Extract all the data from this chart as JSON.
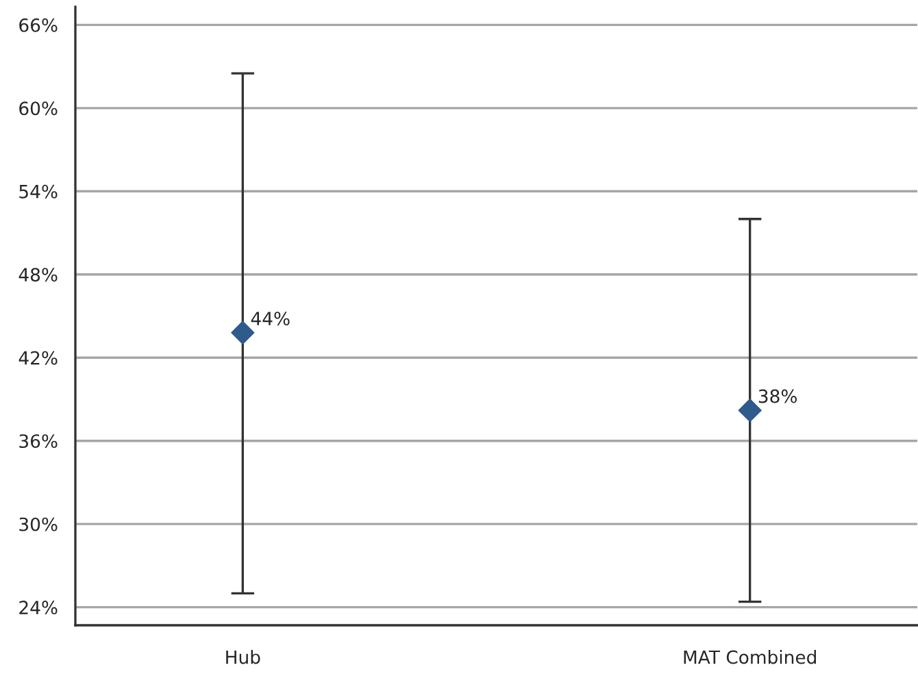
{
  "chart_data": {
    "type": "scatter",
    "categories": [
      "Hub",
      "MAT Combined"
    ],
    "series": [
      {
        "color": "#2f5a8c",
        "values": [
          43.8,
          38.2
        ],
        "errors": [
          [
            25.0,
            62.5
          ],
          [
            24.4,
            52.0
          ]
        ],
        "value_labels": [
          "44%",
          "38%"
        ]
      }
    ],
    "ylim": [
      22.7,
      67.3
    ],
    "yticks": [
      {
        "value": 24,
        "label": "24%"
      },
      {
        "value": 30,
        "label": "30%"
      },
      {
        "value": 36,
        "label": "36%"
      },
      {
        "value": 42,
        "label": "42%"
      },
      {
        "value": 48,
        "label": "48%"
      },
      {
        "value": 54,
        "label": "54%"
      },
      {
        "value": 60,
        "label": "60%"
      },
      {
        "value": 66,
        "label": "66%"
      }
    ],
    "grid": "y",
    "marker": "diamond"
  }
}
